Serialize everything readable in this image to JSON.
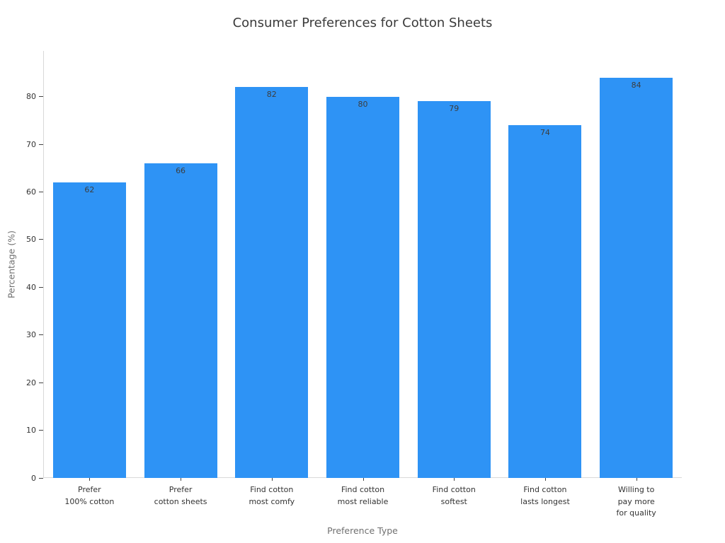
{
  "chart_data": {
    "type": "bar",
    "title": "Consumer Preferences for Cotton Sheets",
    "xlabel": "Preference Type",
    "ylabel": "Percentage (%)",
    "categories": [
      "Prefer\n100% cotton",
      "Prefer\ncotton sheets",
      "Find cotton\nmost comfy",
      "Find cotton\nmost reliable",
      "Find cotton\nsoftest",
      "Find cotton\nlasts longest",
      "Willing to\npay more\nfor quality"
    ],
    "values": [
      62,
      66,
      82,
      80,
      79,
      74,
      84
    ],
    "value_labels": [
      "62",
      "66",
      "82",
      "80",
      "79",
      "74",
      "84"
    ],
    "yticks": [
      0,
      10,
      20,
      30,
      40,
      50,
      60,
      70,
      80
    ],
    "ylim": [
      0,
      89.6
    ],
    "bar_color": "#2E93F5",
    "grid": false,
    "legend": false,
    "colors": {
      "title": "#3a3a3a",
      "tick_text": "#333333",
      "axis_title": "#707070",
      "axis_line": "#d9d9d9",
      "tick_mark": "#444444",
      "value_label": "#3d3d3d",
      "background": "#ffffff"
    }
  }
}
